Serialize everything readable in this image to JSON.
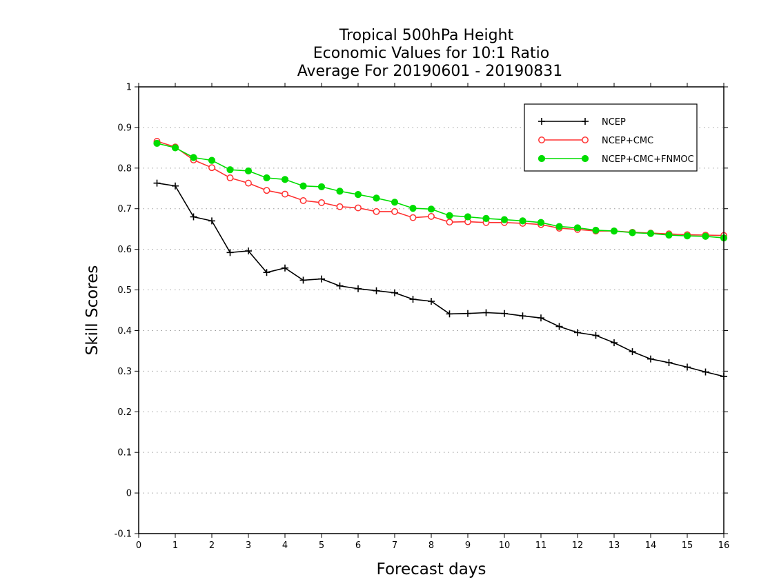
{
  "chart_data": {
    "type": "line",
    "title": [
      "Tropical 500hPa Height",
      "Economic Values for 10:1 Ratio",
      "Average For 20190601 - 20190831"
    ],
    "xlabel": "Forecast days",
    "ylabel": "Skill Scores",
    "xlim": [
      0,
      16
    ],
    "ylim": [
      -0.1,
      1
    ],
    "xticks": [
      "0",
      "1",
      "2",
      "3",
      "4",
      "5",
      "6",
      "7",
      "8",
      "9",
      "10",
      "11",
      "12",
      "13",
      "14",
      "15",
      "16"
    ],
    "yticks": [
      "-0.1",
      "0",
      "0.1",
      "0.2",
      "0.3",
      "0.4",
      "0.5",
      "0.6",
      "0.7",
      "0.8",
      "0.9",
      "1"
    ],
    "grid": "horizontal-dotted",
    "legend_position": "top-right",
    "x": [
      0.5,
      1,
      1.5,
      2,
      2.5,
      3,
      3.5,
      4,
      4.5,
      5,
      5.5,
      6,
      6.5,
      7,
      7.5,
      8,
      8.5,
      9,
      9.5,
      10,
      10.5,
      11,
      11.5,
      12,
      12.5,
      13,
      13.5,
      14,
      14.5,
      15,
      15.5,
      16
    ],
    "series": [
      {
        "name": "NCEP",
        "color": "#000000",
        "marker": "plus",
        "values": [
          0.763,
          0.756,
          0.68,
          0.67,
          0.592,
          0.596,
          0.543,
          0.554,
          0.524,
          0.527,
          0.51,
          0.503,
          0.498,
          0.493,
          0.477,
          0.472,
          0.441,
          0.442,
          0.444,
          0.442,
          0.436,
          0.431,
          0.41,
          0.395,
          0.388,
          0.37,
          0.348,
          0.33,
          0.321,
          0.31,
          0.298,
          0.287
        ]
      },
      {
        "name": "NCEP+CMC",
        "color": "#ff3030",
        "marker": "open-circle",
        "values": [
          0.866,
          0.852,
          0.82,
          0.801,
          0.776,
          0.763,
          0.745,
          0.736,
          0.72,
          0.715,
          0.705,
          0.702,
          0.693,
          0.693,
          0.678,
          0.681,
          0.667,
          0.668,
          0.666,
          0.666,
          0.664,
          0.661,
          0.652,
          0.649,
          0.645,
          0.645,
          0.642,
          0.64,
          0.638,
          0.636,
          0.635,
          0.634
        ]
      },
      {
        "name": "NCEP+CMC+FNMOC",
        "color": "#00dd00",
        "marker": "filled-circle",
        "values": [
          0.861,
          0.85,
          0.826,
          0.819,
          0.796,
          0.793,
          0.776,
          0.772,
          0.756,
          0.754,
          0.743,
          0.735,
          0.726,
          0.716,
          0.701,
          0.699,
          0.683,
          0.68,
          0.676,
          0.673,
          0.67,
          0.666,
          0.656,
          0.653,
          0.647,
          0.645,
          0.641,
          0.639,
          0.635,
          0.633,
          0.632,
          0.628
        ]
      }
    ]
  }
}
